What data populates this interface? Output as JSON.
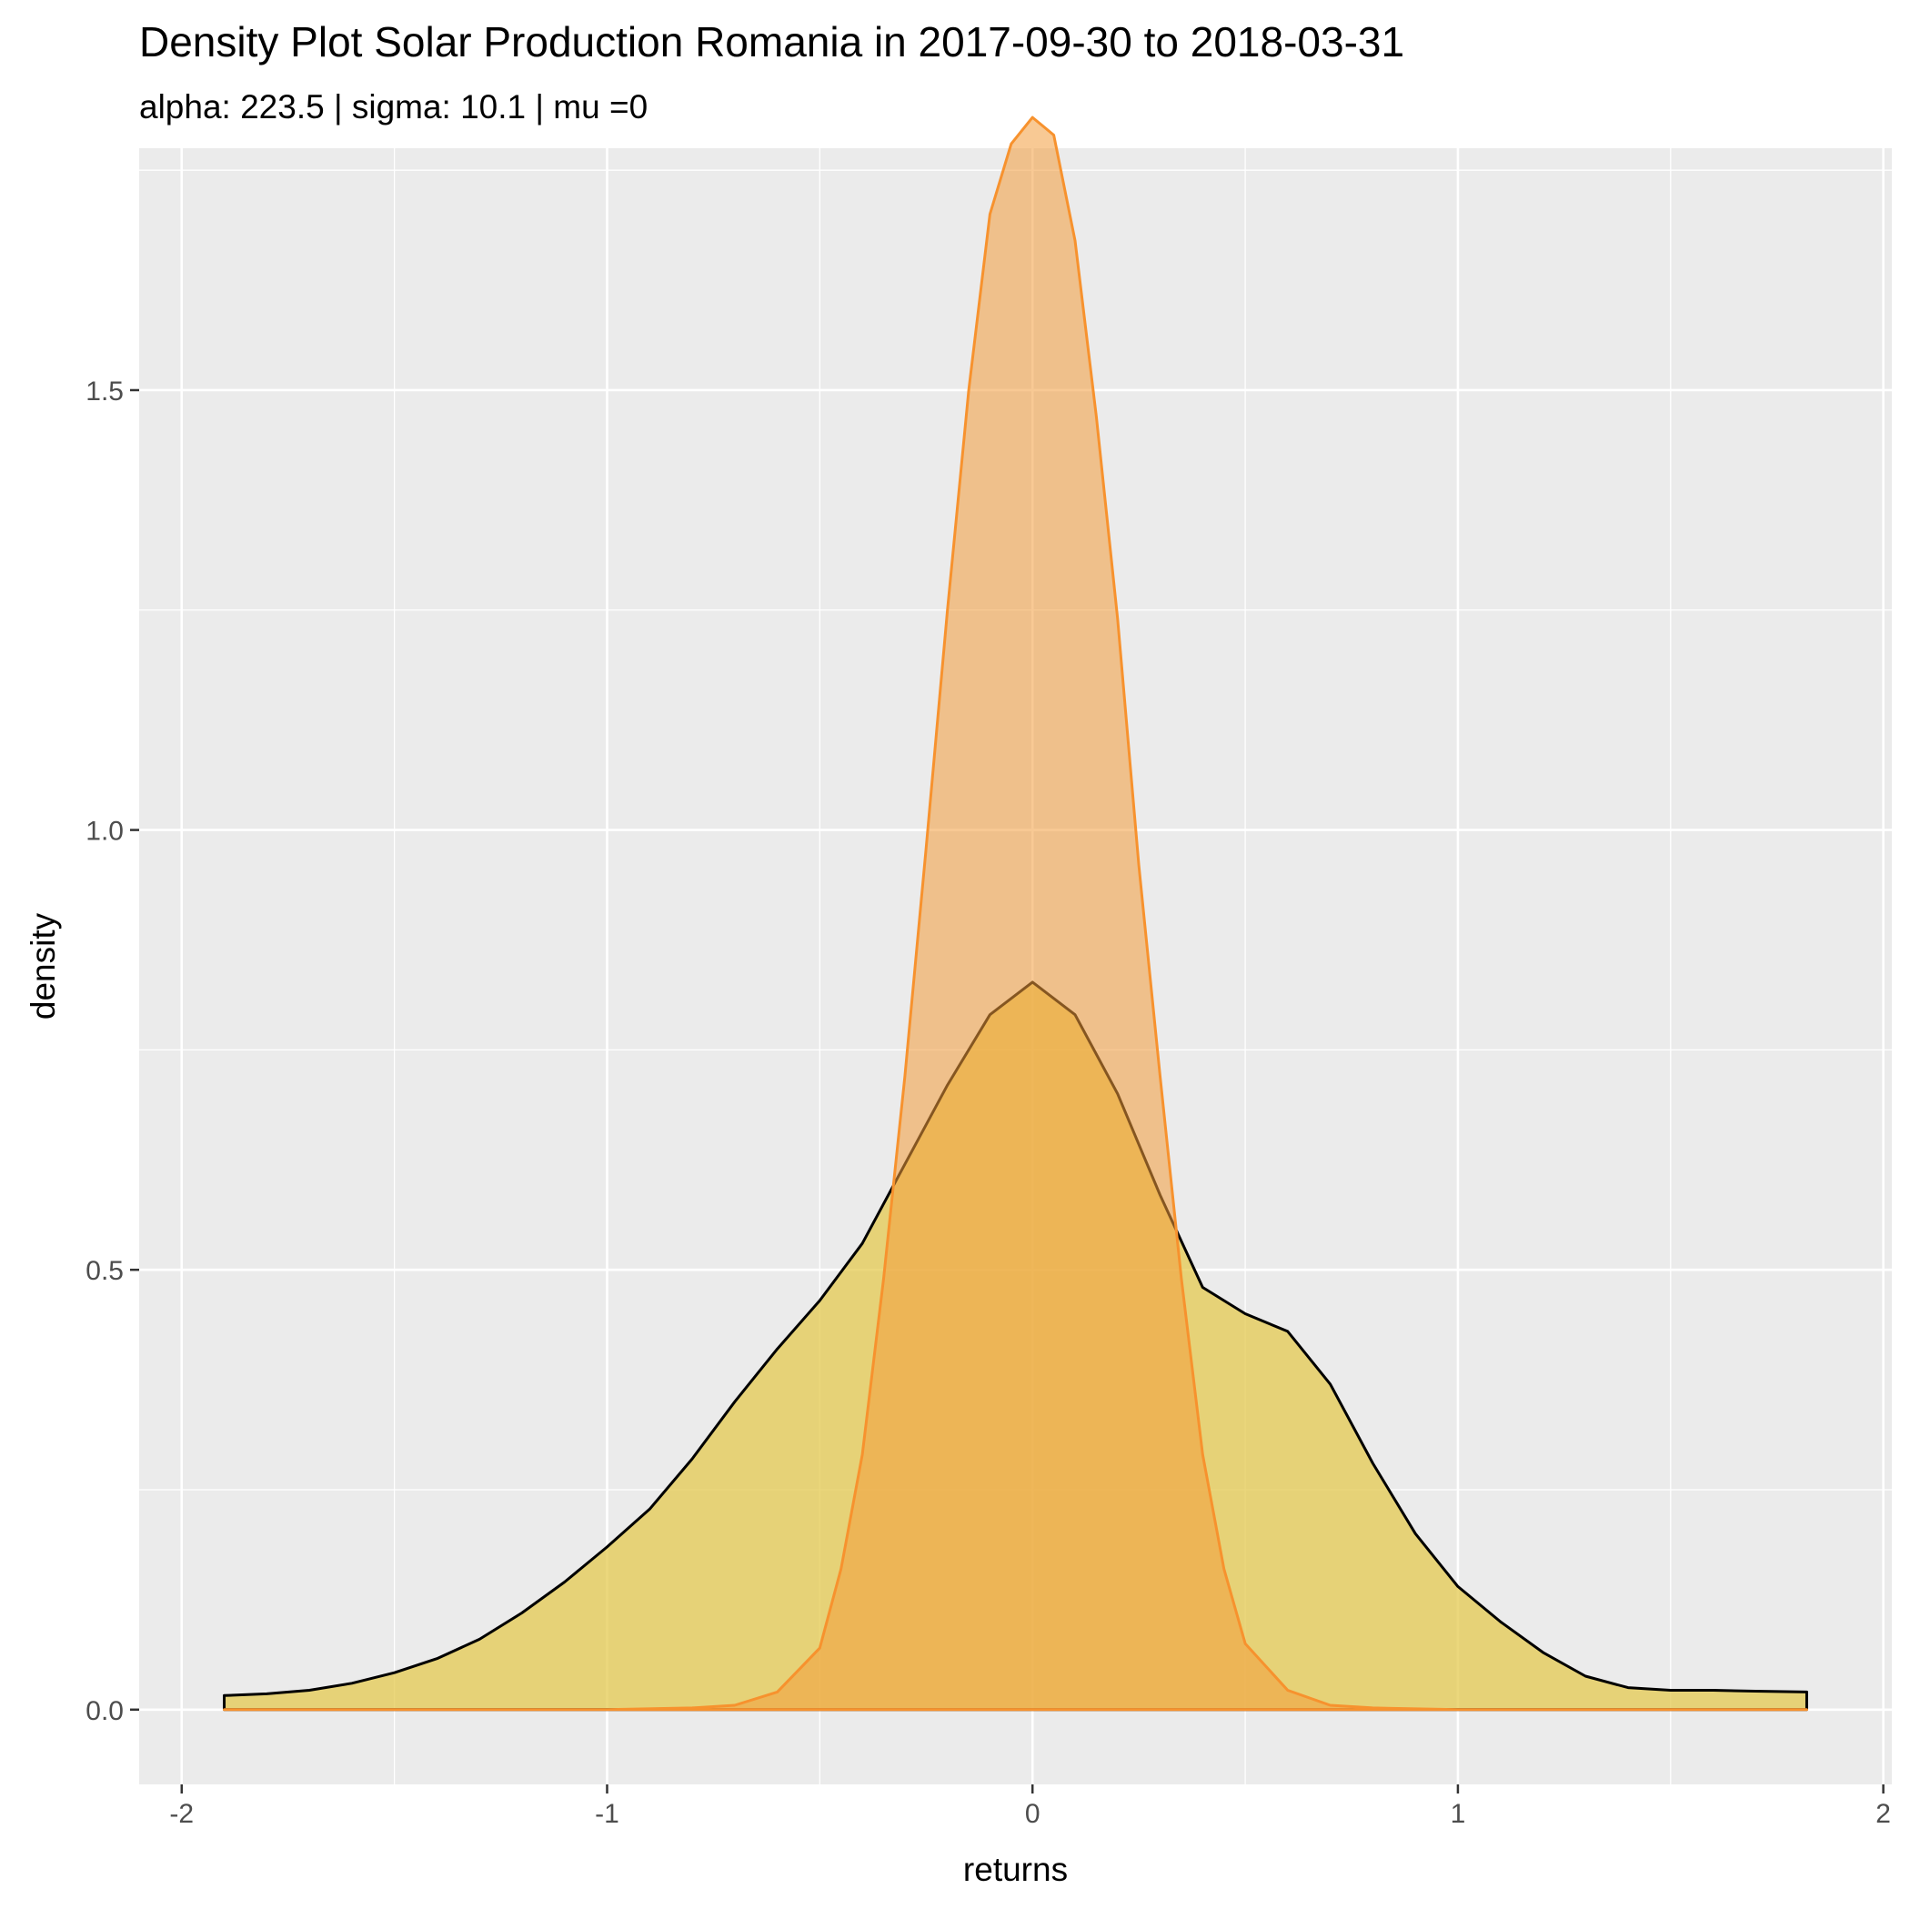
{
  "chart_data": {
    "type": "area",
    "title": "Density Plot Solar Production Romania in 2017-09-30 to 2018-03-31",
    "subtitle": "alpha: 223.5 | sigma: 10.1 | mu =0",
    "xlabel": "returns",
    "ylabel": "density",
    "xlim": [
      -2.1,
      2.02
    ],
    "ylim": [
      -0.085,
      1.775
    ],
    "x_ticks": [
      -2,
      -1,
      0,
      1,
      2
    ],
    "x_tick_labels": [
      "-2",
      "-1",
      "0",
      "1",
      "2"
    ],
    "y_ticks": [
      0.0,
      0.5,
      1.0,
      1.5
    ],
    "y_tick_labels": [
      "0.0",
      "0.5",
      "1.0",
      "1.5"
    ],
    "grid": true,
    "legend": "none",
    "series": [
      {
        "fill": "#e3c84a",
        "fill_opacity": 0.72,
        "stroke": "#000000",
        "x": [
          -1.9,
          -1.8,
          -1.7,
          -1.6,
          -1.5,
          -1.4,
          -1.3,
          -1.2,
          -1.1,
          -1.0,
          -0.9,
          -0.8,
          -0.7,
          -0.6,
          -0.5,
          -0.4,
          -0.3,
          -0.2,
          -0.1,
          0.0,
          0.1,
          0.2,
          0.3,
          0.4,
          0.5,
          0.6,
          0.7,
          0.8,
          0.9,
          1.0,
          1.1,
          1.2,
          1.3,
          1.4,
          1.5,
          1.6,
          1.7,
          1.82
        ],
        "y": [
          0.016,
          0.018,
          0.022,
          0.03,
          0.042,
          0.058,
          0.08,
          0.11,
          0.145,
          0.185,
          0.228,
          0.285,
          0.35,
          0.41,
          0.465,
          0.53,
          0.62,
          0.71,
          0.79,
          0.827,
          0.79,
          0.7,
          0.585,
          0.48,
          0.45,
          0.43,
          0.37,
          0.28,
          0.2,
          0.14,
          0.1,
          0.065,
          0.038,
          0.025,
          0.022,
          0.022,
          0.021,
          0.02
        ]
      },
      {
        "fill": "#f39c3d",
        "fill_opacity": 0.55,
        "stroke": "#f7922e",
        "x": [
          -1.9,
          -1.0,
          -0.8,
          -0.7,
          -0.6,
          -0.5,
          -0.45,
          -0.4,
          -0.35,
          -0.3,
          -0.25,
          -0.2,
          -0.15,
          -0.1,
          -0.05,
          0.0,
          0.05,
          0.1,
          0.15,
          0.2,
          0.25,
          0.3,
          0.35,
          0.4,
          0.45,
          0.5,
          0.6,
          0.7,
          0.8,
          1.0,
          1.82
        ],
        "y": [
          0.0,
          0.0,
          0.002,
          0.005,
          0.02,
          0.07,
          0.16,
          0.29,
          0.49,
          0.72,
          0.98,
          1.25,
          1.5,
          1.7,
          1.78,
          1.81,
          1.79,
          1.67,
          1.47,
          1.24,
          0.96,
          0.72,
          0.49,
          0.29,
          0.16,
          0.075,
          0.022,
          0.005,
          0.002,
          0.0,
          0.0
        ]
      }
    ]
  }
}
